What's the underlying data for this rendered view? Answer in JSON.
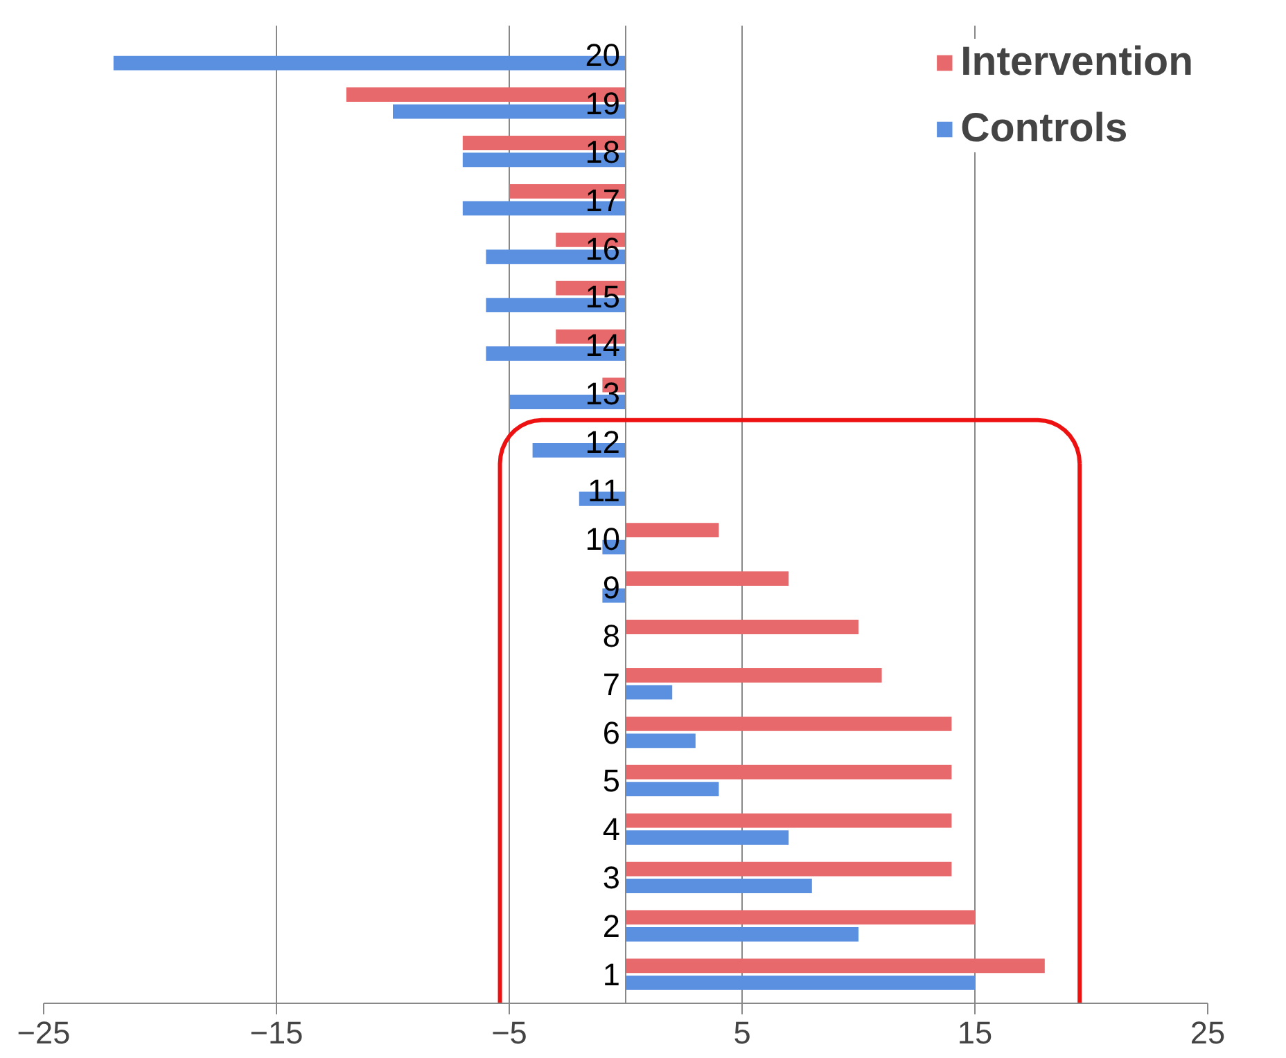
{
  "chart_data": {
    "type": "bar",
    "orientation": "horizontal",
    "categories": [
      "20",
      "19",
      "18",
      "17",
      "16",
      "15",
      "14",
      "13",
      "12",
      "11",
      "10",
      "9",
      "8",
      "7",
      "6",
      "5",
      "4",
      "3",
      "2",
      "1"
    ],
    "series": [
      {
        "name": "Intervention",
        "color": "#e8696b",
        "values": [
          null,
          -12,
          -7,
          -5,
          -3,
          -3,
          -3,
          -1,
          null,
          null,
          4,
          7,
          10,
          11,
          14,
          14,
          14,
          14,
          15,
          18
        ]
      },
      {
        "name": "Controls",
        "color": "#5b8fe0",
        "values": [
          -22,
          -10,
          -7,
          -7,
          -6,
          -6,
          -6,
          -5,
          -4,
          -2,
          -1,
          -1,
          null,
          2,
          3,
          4,
          7,
          8,
          10,
          15
        ]
      }
    ],
    "xlim": [
      -25,
      25
    ],
    "xticks": [
      -25,
      -15,
      -5,
      5,
      15,
      25
    ],
    "grid": "x",
    "legend": "top right"
  }
}
